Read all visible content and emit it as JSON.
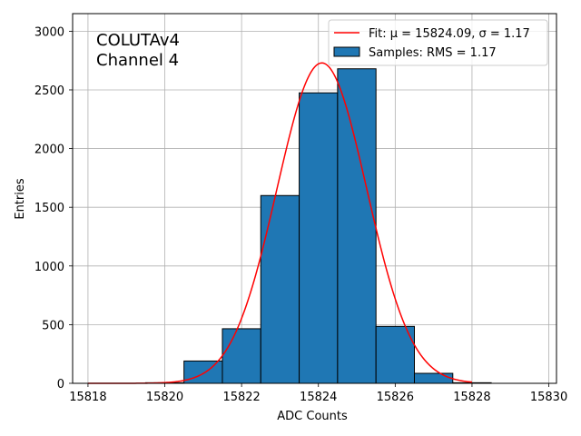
{
  "chart_data": {
    "type": "bar",
    "title": "",
    "xlabel": "ADC Counts",
    "ylabel": "Entries",
    "xlim": [
      15817.6,
      15830.2
    ],
    "ylim": [
      0,
      3150
    ],
    "xticks": [
      15818,
      15820,
      15822,
      15824,
      15826,
      15828,
      15830
    ],
    "yticks": [
      0,
      500,
      1000,
      1500,
      2000,
      2500,
      3000
    ],
    "grid": true,
    "annotation": [
      "COLUTAv4",
      "Channel 4"
    ],
    "legend_position": "top-right",
    "legend": {
      "fit_label": "Fit: μ = 15824.09, σ = 1.17",
      "samples_label": "Samples: RMS = 1.17"
    },
    "histogram": {
      "name": "Samples: RMS = 1.17",
      "color": "#1f77b4",
      "edgecolor": "#000000",
      "bins": [
        {
          "x0": 15819.5,
          "x1": 15820.5,
          "count": 5
        },
        {
          "x0": 15820.5,
          "x1": 15821.5,
          "count": 190
        },
        {
          "x0": 15821.5,
          "x1": 15822.5,
          "count": 465
        },
        {
          "x0": 15822.5,
          "x1": 15823.5,
          "count": 1600
        },
        {
          "x0": 15823.5,
          "x1": 15824.5,
          "count": 2475
        },
        {
          "x0": 15824.5,
          "x1": 15825.5,
          "count": 2680
        },
        {
          "x0": 15825.5,
          "x1": 15826.5,
          "count": 485
        },
        {
          "x0": 15826.5,
          "x1": 15827.5,
          "count": 85
        },
        {
          "x0": 15827.5,
          "x1": 15828.5,
          "count": 5
        }
      ]
    },
    "fit": {
      "name": "Fit: μ = 15824.09, σ = 1.17",
      "color": "#ff0000",
      "mu": 15824.09,
      "sigma": 1.17,
      "amplitude": 2730,
      "x_range": [
        15818,
        15828
      ]
    }
  }
}
